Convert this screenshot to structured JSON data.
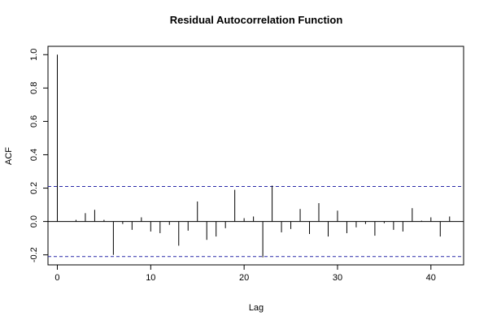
{
  "chart_data": {
    "type": "bar",
    "title": "Residual Autocorrelation Function",
    "xlabel": "Lag",
    "ylabel": "ACF",
    "xlim": [
      -1,
      43.5
    ],
    "ylim": [
      -0.26,
      1.05
    ],
    "x_ticks": [
      0,
      10,
      20,
      30,
      40
    ],
    "x_tick_labels": [
      "0",
      "10",
      "20",
      "30",
      "40"
    ],
    "y_ticks": [
      -0.2,
      0.0,
      0.2,
      0.4,
      0.6,
      0.8,
      1.0
    ],
    "y_tick_labels": [
      "-0.2",
      "0.0",
      "0.2",
      "0.4",
      "0.6",
      "0.8",
      "1.0"
    ],
    "grid": false,
    "confidence_bounds": [
      0.21,
      -0.21
    ],
    "confidence_color": "#2a2aa8",
    "lags": [
      0,
      1,
      2,
      3,
      4,
      5,
      6,
      7,
      8,
      9,
      10,
      11,
      12,
      13,
      14,
      15,
      16,
      17,
      18,
      19,
      20,
      21,
      22,
      23,
      24,
      25,
      26,
      27,
      28,
      29,
      30,
      31,
      32,
      33,
      34,
      35,
      36,
      37,
      38,
      39,
      40,
      41,
      42
    ],
    "values": [
      1.0,
      0.0,
      0.01,
      0.05,
      0.07,
      0.01,
      -0.2,
      -0.015,
      -0.05,
      0.025,
      -0.06,
      -0.07,
      -0.02,
      -0.145,
      -0.055,
      0.12,
      -0.11,
      -0.09,
      -0.04,
      0.19,
      0.02,
      0.03,
      -0.215,
      0.215,
      -0.065,
      -0.045,
      0.075,
      -0.075,
      0.11,
      -0.09,
      0.065,
      -0.07,
      -0.035,
      -0.015,
      -0.085,
      -0.01,
      -0.05,
      -0.06,
      0.08,
      0.005,
      0.025,
      -0.09,
      0.03
    ]
  }
}
